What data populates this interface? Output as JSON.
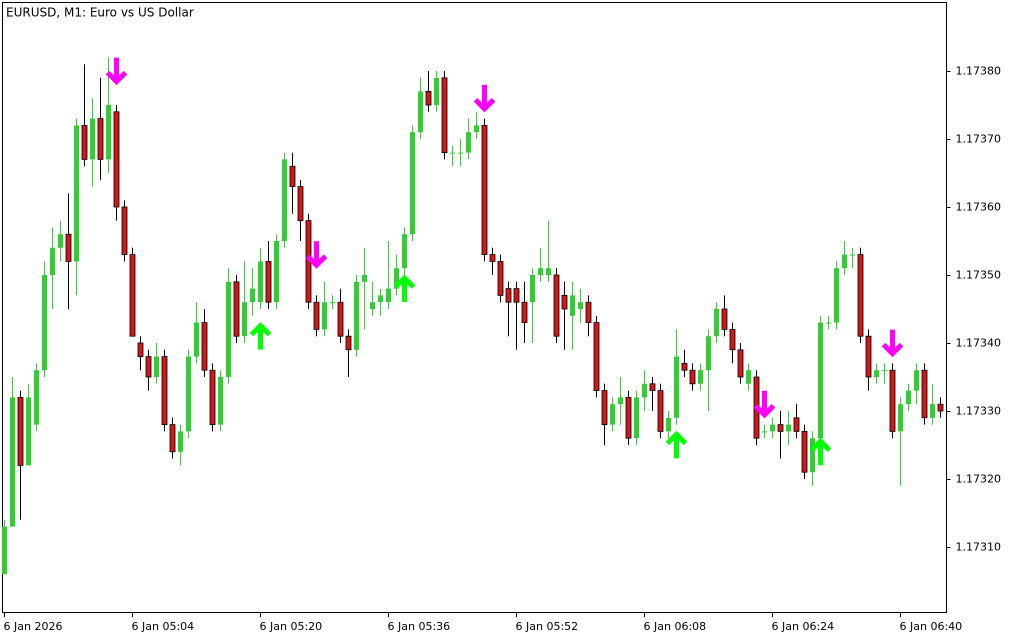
{
  "chart_data": {
    "type": "candlestick",
    "title": "EURUSD, M1:  Euro vs US Dollar",
    "categories": [
      "6 Jan 2026",
      null,
      null,
      null,
      null,
      null,
      null,
      null,
      null,
      null,
      null,
      null,
      null,
      null,
      null,
      null,
      "6 Jan 05:04",
      null,
      null,
      null,
      null,
      null,
      null,
      null,
      null,
      null,
      null,
      null,
      null,
      null,
      null,
      null,
      "6 Jan 05:20",
      null,
      null,
      null,
      null,
      null,
      null,
      null,
      null,
      null,
      null,
      null,
      null,
      null,
      null,
      null,
      "6 Jan 05:36",
      null,
      null,
      null,
      null,
      null,
      null,
      null,
      null,
      null,
      null,
      null,
      null,
      null,
      null,
      null,
      "6 Jan 05:52",
      null,
      null,
      null,
      null,
      null,
      null,
      null,
      null,
      null,
      null,
      null,
      null,
      null,
      null,
      null,
      "6 Jan 06:08",
      null,
      null,
      null,
      null,
      null,
      null,
      null,
      null,
      null,
      null,
      null,
      null,
      null,
      null,
      null,
      "6 Jan 06:24",
      null,
      null,
      null,
      null,
      null,
      null,
      null,
      null,
      null,
      null,
      null,
      null,
      null,
      null,
      null,
      "6 Jan 06:40",
      null,
      null,
      null,
      null,
      null
    ],
    "open": [
      1.17306,
      1.17313,
      1.17332,
      1.17322,
      1.17328,
      1.17336,
      1.1735,
      1.17354,
      1.17356,
      1.17352,
      1.17372,
      1.17367,
      1.17373,
      1.17367,
      1.17374,
      1.1736,
      1.17353,
      1.1734,
      1.17338,
      1.17335,
      1.17338,
      1.17328,
      1.17324,
      1.17327,
      1.17338,
      1.17343,
      1.17336,
      1.17328,
      1.17335,
      1.17349,
      1.17341,
      1.17346,
      1.17346,
      1.17352,
      1.17346,
      1.17355,
      1.17366,
      1.17363,
      1.17358,
      1.17346,
      1.17342,
      1.17346,
      1.17346,
      1.17341,
      1.17339,
      1.17349,
      1.17345,
      1.17346,
      1.17346,
      1.17348,
      1.17351,
      1.17356,
      1.17371,
      1.17377,
      1.17375,
      1.17379,
      1.17368,
      1.17368,
      1.17368,
      1.17371,
      1.17372,
      1.17353,
      1.17352,
      1.17348,
      1.17348,
      1.17346,
      1.17346,
      1.1735,
      1.1735,
      1.1735,
      1.17347,
      1.17344,
      1.17345,
      1.17346,
      1.17343,
      1.17333,
      1.17328,
      1.17331,
      1.17332,
      1.17326,
      1.17332,
      1.17334,
      1.17333,
      1.17327,
      1.17329,
      1.17337,
      1.17336,
      1.17334,
      1.17336,
      1.17341,
      1.17345,
      1.17342,
      1.17339,
      1.17334,
      1.17335,
      1.17327,
      1.17327,
      1.17328,
      1.17327,
      1.17329,
      1.17327,
      1.17321,
      1.17326,
      1.17343,
      1.17343,
      1.17351,
      1.17353,
      1.17353,
      1.17341,
      1.17335,
      1.17336,
      1.17336,
      1.17327,
      1.17331,
      1.17333,
      1.17336,
      1.17329,
      1.17331
    ],
    "high": [
      1.17314,
      1.17335,
      1.17333,
      1.17334,
      1.17337,
      1.17352,
      1.17357,
      1.17358,
      1.17362,
      1.17373,
      1.17381,
      1.17376,
      1.17379,
      1.17382,
      1.17375,
      1.17361,
      1.17354,
      1.17341,
      1.17339,
      1.1734,
      1.17339,
      1.17329,
      1.17328,
      1.17339,
      1.17346,
      1.17345,
      1.17337,
      1.17336,
      1.17351,
      1.1735,
      1.17352,
      1.17351,
      1.17354,
      1.17355,
      1.17356,
      1.17368,
      1.17368,
      1.17364,
      1.17359,
      1.17347,
      1.17349,
      1.17347,
      1.17348,
      1.17342,
      1.1735,
      1.17354,
      1.17349,
      1.17348,
      1.17355,
      1.17353,
      1.17357,
      1.17372,
      1.17379,
      1.1738,
      1.1738,
      1.1738,
      1.17369,
      1.1737,
      1.17373,
      1.17374,
      1.17373,
      1.17354,
      1.17353,
      1.17349,
      1.17349,
      1.17349,
      1.17351,
      1.17354,
      1.17358,
      1.17351,
      1.17349,
      1.17349,
      1.17348,
      1.17347,
      1.17344,
      1.17334,
      1.17332,
      1.17335,
      1.17333,
      1.17333,
      1.17336,
      1.17335,
      1.17334,
      1.1733,
      1.17342,
      1.17339,
      1.17337,
      1.17337,
      1.17342,
      1.17346,
      1.17347,
      1.17343,
      1.1734,
      1.17337,
      1.17336,
      1.17328,
      1.17329,
      1.1733,
      1.1733,
      1.17331,
      1.17328,
      1.17327,
      1.17344,
      1.17344,
      1.17352,
      1.17355,
      1.17354,
      1.17354,
      1.17342,
      1.17337,
      1.17337,
      1.17337,
      1.17332,
      1.17334,
      1.17337,
      1.17337,
      1.17334,
      1.17332
    ],
    "low": [
      1.17306,
      1.17313,
      1.17314,
      1.17322,
      1.17327,
      1.17335,
      1.17345,
      1.17352,
      1.17345,
      1.17347,
      1.17366,
      1.17363,
      1.17364,
      1.17365,
      1.17358,
      1.17352,
      1.17341,
      1.17336,
      1.17333,
      1.17334,
      1.17327,
      1.17323,
      1.17322,
      1.17326,
      1.17337,
      1.17335,
      1.17327,
      1.17327,
      1.17334,
      1.1734,
      1.1734,
      1.17344,
      1.17345,
      1.17345,
      1.17345,
      1.17354,
      1.17359,
      1.17355,
      1.17345,
      1.17341,
      1.17341,
      1.17345,
      1.1734,
      1.17335,
      1.17338,
      1.17342,
      1.17344,
      1.17344,
      1.17345,
      1.17347,
      1.1735,
      1.17355,
      1.1737,
      1.17374,
      1.17374,
      1.17367,
      1.17366,
      1.17366,
      1.17367,
      1.1737,
      1.17352,
      1.1735,
      1.17346,
      1.17341,
      1.17339,
      1.1734,
      1.1734,
      1.17349,
      1.17349,
      1.1734,
      1.17339,
      1.17339,
      1.17343,
      1.17341,
      1.17332,
      1.17325,
      1.17327,
      1.17328,
      1.17325,
      1.17325,
      1.1733,
      1.1733,
      1.17326,
      1.17326,
      1.17328,
      1.17335,
      1.17333,
      1.17333,
      1.1733,
      1.1734,
      1.17341,
      1.17337,
      1.17334,
      1.17333,
      1.17325,
      1.17326,
      1.17326,
      1.17323,
      1.17325,
      1.17326,
      1.1732,
      1.17319,
      1.17325,
      1.17342,
      1.17342,
      1.1735,
      1.17351,
      1.1734,
      1.17333,
      1.17334,
      1.17334,
      1.17326,
      1.17319,
      1.1733,
      1.17331,
      1.17328,
      1.17328,
      1.17329
    ],
    "close": [
      1.17313,
      1.17332,
      1.17322,
      1.17332,
      1.17336,
      1.1735,
      1.17354,
      1.17356,
      1.17352,
      1.17372,
      1.17367,
      1.17373,
      1.17367,
      1.17375,
      1.1736,
      1.17353,
      1.17341,
      1.17338,
      1.17335,
      1.17338,
      1.17328,
      1.17324,
      1.17327,
      1.17338,
      1.17343,
      1.17336,
      1.17328,
      1.17335,
      1.17349,
      1.17341,
      1.17346,
      1.17348,
      1.17352,
      1.17346,
      1.17355,
      1.17367,
      1.17363,
      1.17358,
      1.17346,
      1.17342,
      1.17346,
      1.17346,
      1.17341,
      1.17339,
      1.17349,
      1.1735,
      1.17346,
      1.17347,
      1.17348,
      1.17351,
      1.17356,
      1.17371,
      1.17377,
      1.17375,
      1.17379,
      1.17368,
      1.17368,
      1.17368,
      1.17371,
      1.17372,
      1.17353,
      1.17352,
      1.17347,
      1.17346,
      1.17346,
      1.17343,
      1.1735,
      1.17351,
      1.17351,
      1.17341,
      1.17345,
      1.17347,
      1.17346,
      1.17343,
      1.17333,
      1.17328,
      1.17331,
      1.17332,
      1.17326,
      1.17332,
      1.17334,
      1.17333,
      1.17327,
      1.17329,
      1.17338,
      1.17336,
      1.17334,
      1.17336,
      1.17341,
      1.17345,
      1.17342,
      1.17339,
      1.17335,
      1.17336,
      1.17326,
      1.17327,
      1.17328,
      1.17327,
      1.17328,
      1.17327,
      1.17321,
      1.17326,
      1.17343,
      1.17343,
      1.17351,
      1.17353,
      1.17353,
      1.17341,
      1.17335,
      1.17336,
      1.17336,
      1.17327,
      1.17331,
      1.17333,
      1.17336,
      1.17329,
      1.17331,
      1.1733
    ],
    "up_color": "#32cd32",
    "down_color": "#d01818",
    "down_arrows": [
      {
        "index": 14,
        "price": 1.17378
      },
      {
        "index": 39,
        "price": 1.17351
      },
      {
        "index": 60,
        "price": 1.17374
      },
      {
        "index": 95,
        "price": 1.17329
      },
      {
        "index": 111,
        "price": 1.17338
      }
    ],
    "up_arrows": [
      {
        "index": 32,
        "price": 1.17343
      },
      {
        "index": 50,
        "price": 1.1735
      },
      {
        "index": 84,
        "price": 1.17327
      },
      {
        "index": 102,
        "price": 1.17326
      }
    ],
    "down_arrow_color": "#ff00ff",
    "up_arrow_color": "#00ff00",
    "ylim": [
      1.173005,
      1.1739
    ],
    "yticks": [
      {
        "value": 1.1731,
        "label": "1.17310"
      },
      {
        "value": 1.1732,
        "label": "1.17320"
      },
      {
        "value": 1.1733,
        "label": "1.17330"
      },
      {
        "value": 1.1734,
        "label": "1.17340"
      },
      {
        "value": 1.1735,
        "label": "1.17350"
      },
      {
        "value": 1.1736,
        "label": "1.17360"
      },
      {
        "value": 1.1737,
        "label": "1.17370"
      },
      {
        "value": 1.1738,
        "label": "1.17380"
      }
    ]
  }
}
